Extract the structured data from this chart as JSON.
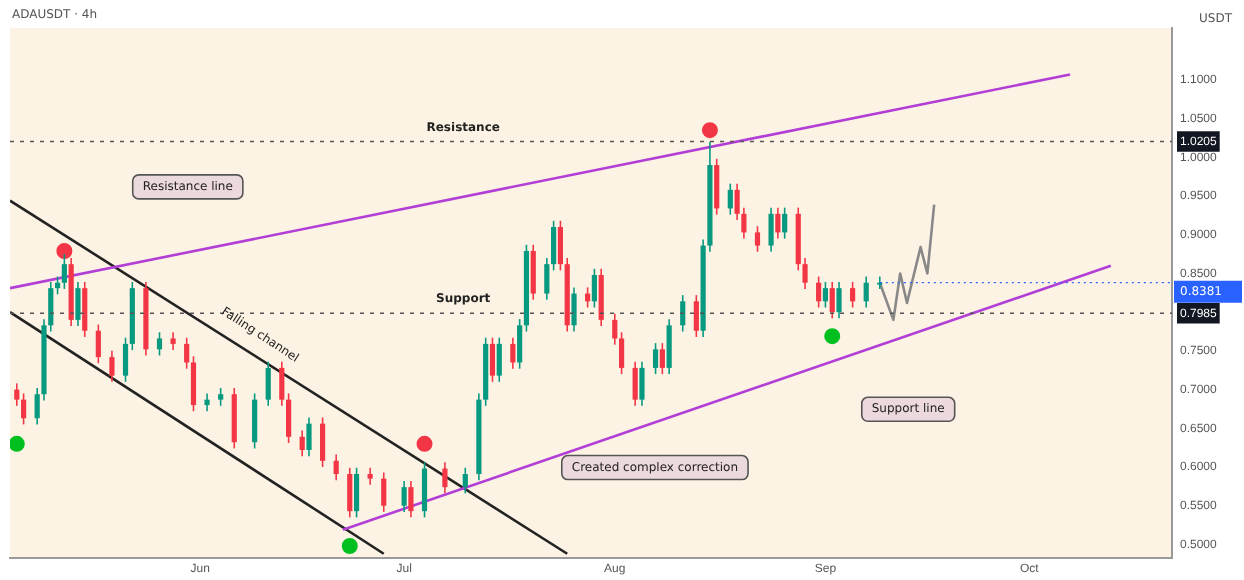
{
  "chart_data": {
    "type": "candlestick",
    "title": "ADAUSDT · 4h",
    "ylabel": "USDT",
    "x": [
      "--05-05",
      "--05-06",
      "--05-08",
      "--05-09",
      "--05-10",
      "--05-11",
      "--05-12",
      "--05-13",
      "--05-14",
      "--05-15",
      "--05-17",
      "--05-19",
      "--05-21",
      "--05-22",
      "--05-24",
      "--05-26",
      "--05-28",
      "--05-30",
      "--05-31",
      "--06-02",
      "--06-04",
      "--06-06",
      "--06-09",
      "--06-11",
      "--06-13",
      "--06-14",
      "--06-16",
      "--06-17",
      "--06-19",
      "--06-21",
      "--06-23",
      "--06-24",
      "--06-26",
      "--06-28",
      "--07-01",
      "--07-02",
      "--07-04",
      "--07-07",
      "--07-10",
      "--07-12",
      "--07-13",
      "--07-14",
      "--07-15",
      "--07-17",
      "--07-18",
      "--07-19",
      "--07-20",
      "--07-22",
      "--07-23",
      "--07-24",
      "--07-25",
      "--07-26",
      "--07-28",
      "--07-29",
      "--07-30",
      "--08-01",
      "--08-02",
      "--08-04",
      "--08-05",
      "--08-07",
      "--08-08",
      "--08-09",
      "--08-11",
      "--08-13",
      "--08-14",
      "--08-15",
      "--08-16",
      "--08-18",
      "--08-19",
      "--08-20",
      "--08-22",
      "--08-24",
      "--08-25",
      "--08-26",
      "--08-28",
      "--08-29",
      "--08-31",
      "--09-01",
      "--09-02",
      "--09-03",
      "--09-05",
      "--09-07",
      "--09-09"
    ],
    "ohlc": [
      [
        0.7,
        0.708,
        0.679,
        0.687
      ],
      [
        0.687,
        0.695,
        0.655,
        0.663
      ],
      [
        0.663,
        0.702,
        0.655,
        0.694
      ],
      [
        0.694,
        0.791,
        0.686,
        0.783
      ],
      [
        0.783,
        0.839,
        0.775,
        0.831
      ],
      [
        0.831,
        0.846,
        0.823,
        0.838
      ],
      [
        0.838,
        0.875,
        0.83,
        0.862
      ],
      [
        0.862,
        0.87,
        0.782,
        0.79
      ],
      [
        0.79,
        0.839,
        0.782,
        0.831
      ],
      [
        0.831,
        0.839,
        0.768,
        0.776
      ],
      [
        0.776,
        0.784,
        0.734,
        0.742
      ],
      [
        0.742,
        0.75,
        0.71,
        0.718
      ],
      [
        0.718,
        0.767,
        0.71,
        0.759
      ],
      [
        0.759,
        0.839,
        0.751,
        0.831
      ],
      [
        0.831,
        0.839,
        0.744,
        0.752
      ],
      [
        0.752,
        0.774,
        0.744,
        0.766
      ],
      [
        0.766,
        0.774,
        0.751,
        0.759
      ],
      [
        0.759,
        0.767,
        0.727,
        0.735
      ],
      [
        0.735,
        0.743,
        0.672,
        0.68
      ],
      [
        0.68,
        0.695,
        0.672,
        0.687
      ],
      [
        0.687,
        0.702,
        0.679,
        0.694
      ],
      [
        0.694,
        0.702,
        0.624,
        0.632
      ],
      [
        0.632,
        0.695,
        0.624,
        0.687
      ],
      [
        0.687,
        0.736,
        0.679,
        0.728
      ],
      [
        0.728,
        0.736,
        0.679,
        0.687
      ],
      [
        0.687,
        0.695,
        0.631,
        0.639
      ],
      [
        0.639,
        0.647,
        0.614,
        0.622
      ],
      [
        0.622,
        0.664,
        0.614,
        0.656
      ],
      [
        0.656,
        0.664,
        0.6,
        0.608
      ],
      [
        0.608,
        0.616,
        0.583,
        0.591
      ],
      [
        0.591,
        0.599,
        0.535,
        0.543
      ],
      [
        0.543,
        0.599,
        0.535,
        0.591
      ],
      [
        0.591,
        0.599,
        0.577,
        0.585
      ],
      [
        0.585,
        0.593,
        0.542,
        0.55
      ],
      [
        0.55,
        0.582,
        0.542,
        0.574
      ],
      [
        0.574,
        0.582,
        0.535,
        0.543
      ],
      [
        0.543,
        0.606,
        0.535,
        0.598
      ],
      [
        0.598,
        0.606,
        0.566,
        0.574
      ],
      [
        0.574,
        0.599,
        0.566,
        0.591
      ],
      [
        0.591,
        0.695,
        0.583,
        0.687
      ],
      [
        0.687,
        0.767,
        0.679,
        0.759
      ],
      [
        0.759,
        0.767,
        0.71,
        0.718
      ],
      [
        0.718,
        0.767,
        0.71,
        0.759
      ],
      [
        0.759,
        0.767,
        0.727,
        0.735
      ],
      [
        0.735,
        0.791,
        0.727,
        0.783
      ],
      [
        0.783,
        0.887,
        0.775,
        0.879
      ],
      [
        0.879,
        0.887,
        0.816,
        0.824
      ],
      [
        0.824,
        0.87,
        0.816,
        0.862
      ],
      [
        0.862,
        0.918,
        0.854,
        0.91
      ],
      [
        0.91,
        0.918,
        0.854,
        0.862
      ],
      [
        0.862,
        0.87,
        0.775,
        0.783
      ],
      [
        0.783,
        0.832,
        0.775,
        0.824
      ],
      [
        0.824,
        0.832,
        0.806,
        0.814
      ],
      [
        0.814,
        0.856,
        0.806,
        0.848
      ],
      [
        0.848,
        0.856,
        0.782,
        0.79
      ],
      [
        0.79,
        0.798,
        0.758,
        0.766
      ],
      [
        0.766,
        0.774,
        0.72,
        0.728
      ],
      [
        0.728,
        0.736,
        0.679,
        0.687
      ],
      [
        0.687,
        0.736,
        0.679,
        0.728
      ],
      [
        0.728,
        0.76,
        0.72,
        0.752
      ],
      [
        0.752,
        0.76,
        0.72,
        0.728
      ],
      [
        0.728,
        0.791,
        0.72,
        0.783
      ],
      [
        0.783,
        0.822,
        0.775,
        0.814
      ],
      [
        0.814,
        0.822,
        0.768,
        0.776
      ],
      [
        0.776,
        0.894,
        0.768,
        0.886
      ],
      [
        0.886,
        1.02,
        0.878,
        0.99
      ],
      [
        0.99,
        0.998,
        0.926,
        0.934
      ],
      [
        0.934,
        0.966,
        0.926,
        0.958
      ],
      [
        0.958,
        0.966,
        0.919,
        0.927
      ],
      [
        0.927,
        0.935,
        0.895,
        0.903
      ],
      [
        0.903,
        0.911,
        0.878,
        0.886
      ],
      [
        0.886,
        0.935,
        0.878,
        0.927
      ],
      [
        0.927,
        0.935,
        0.895,
        0.903
      ],
      [
        0.903,
        0.935,
        0.895,
        0.927
      ],
      [
        0.927,
        0.935,
        0.854,
        0.862
      ],
      [
        0.862,
        0.87,
        0.83,
        0.838
      ],
      [
        0.838,
        0.846,
        0.806,
        0.814
      ],
      [
        0.814,
        0.839,
        0.806,
        0.831
      ],
      [
        0.831,
        0.839,
        0.792,
        0.8
      ],
      [
        0.8,
        0.839,
        0.792,
        0.831
      ],
      [
        0.831,
        0.839,
        0.806,
        0.814
      ],
      [
        0.814,
        0.846,
        0.806,
        0.838
      ],
      [
        0.838,
        0.846,
        0.83,
        0.8381
      ]
    ],
    "series": [
      {
        "type": "line",
        "color": "#b23ed6",
        "x": [
          "--05-04",
          "--10-07"
        ],
        "values": [
          0.831,
          1.107
        ]
      },
      {
        "type": "line",
        "color": "#b23ed6",
        "x": [
          "--06-22",
          "--10-13"
        ],
        "values": [
          0.519,
          0.86
        ]
      },
      {
        "type": "line",
        "color": "#222222",
        "x": [
          "--05-04",
          "--07-25"
        ],
        "values": [
          0.944,
          0.488
        ]
      },
      {
        "type": "line",
        "color": "#222222",
        "x": [
          "--05-04",
          "--06-28"
        ],
        "values": [
          0.8,
          0.488
        ]
      },
      {
        "type": "line",
        "color": "#888888",
        "x": [
          "--09-09",
          "--09-11",
          "--09-12",
          "--09-13",
          "--09-15",
          "--09-16",
          "--09-17"
        ],
        "values": [
          0.838,
          0.79,
          0.85,
          0.812,
          0.884,
          0.85,
          0.939
        ]
      },
      {
        "type": "scatter",
        "color": "#f23645",
        "marker": "circle",
        "x": [
          "--05-12",
          "--07-04",
          "--08-15"
        ],
        "values": [
          0.879,
          0.63,
          1.035
        ]
      },
      {
        "type": "scatter",
        "color": "#00c020",
        "marker": "circle",
        "x": [
          "--05-05",
          "--06-23",
          "--09-02"
        ],
        "values": [
          0.63,
          0.498,
          0.769
        ]
      }
    ],
    "xlim": [
      "--05-04",
      "--10-22"
    ],
    "xticks": [
      {
        "value": "--06-01",
        "label": "Jun"
      },
      {
        "value": "--07-01",
        "label": "Jul"
      },
      {
        "value": "--08-01",
        "label": "Aug"
      },
      {
        "value": "--09-01",
        "label": "Sep"
      },
      {
        "value": "--10-01",
        "label": "Oct"
      }
    ],
    "ylim": [
      0.483,
      1.167
    ],
    "yticks": [
      {
        "value": 0.5,
        "label": "0.5000"
      },
      {
        "value": 0.55,
        "label": "0.5500"
      },
      {
        "value": 0.6,
        "label": "0.6000"
      },
      {
        "value": 0.65,
        "label": "0.6500"
      },
      {
        "value": 0.7,
        "label": "0.7000"
      },
      {
        "value": 0.75,
        "label": "0.7500"
      },
      {
        "value": 0.7985,
        "label": "0.7985"
      },
      {
        "value": 0.85,
        "label": "0.8500"
      },
      {
        "value": 0.9,
        "label": "0.9000"
      },
      {
        "value": 0.95,
        "label": "0.9500"
      },
      {
        "value": 1.0,
        "label": "1.0000"
      },
      {
        "value": 1.0205,
        "label": "1.0205"
      },
      {
        "value": 1.05,
        "label": "1.0500"
      },
      {
        "value": 1.1,
        "label": "1.1000"
      }
    ],
    "ref_lines": [
      {
        "axis": "y",
        "value": 1.0205,
        "label": "Resistance",
        "line_style": "dotted"
      },
      {
        "axis": "y",
        "value": 0.7985,
        "label": "Support",
        "line_style": "dotted"
      }
    ],
    "annotations": [
      "Resistance line",
      "Falling channel",
      "Created complex correction",
      "Support line",
      {
        "text": "0.8381",
        "x": "--09-09",
        "y": 0.8381
      }
    ],
    "grid": false,
    "legend": false
  }
}
